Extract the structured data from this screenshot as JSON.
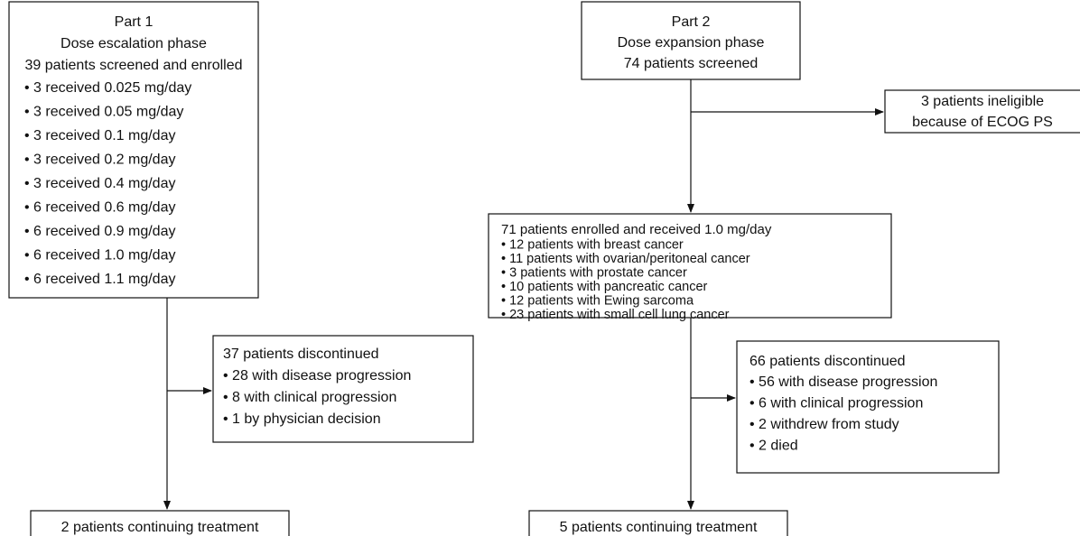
{
  "part1": {
    "title": "Part 1",
    "subtitle": "Dose escalation phase",
    "summary": "39 patients screened and enrolled",
    "bullets": [
      "• 3 received 0.025 mg/day",
      "• 3 received 0.05 mg/day",
      "• 3 received 0.1 mg/day",
      "• 3 received 0.2 mg/day",
      "• 3 received 0.4 mg/day",
      "• 6 received 0.6 mg/day",
      "• 6 received 0.9 mg/day",
      "• 6 received 1.0 mg/day",
      "• 6 received 1.1 mg/day"
    ]
  },
  "part1_discontinued": {
    "summary": "37 patients discontinued",
    "bullets": [
      "• 28 with disease progression",
      "• 8 with clinical progression",
      "• 1 by physician decision"
    ]
  },
  "part1_continuing": "2 patients continuing treatment",
  "part2": {
    "title": "Part 2",
    "subtitle": "Dose expansion phase",
    "summary": "74 patients screened"
  },
  "part2_ineligible": [
    "3 patients ineligible",
    "because of  ECOG PS"
  ],
  "part2_enrolled": {
    "summary": "71 patients enrolled and received 1.0 mg/day",
    "bullets": [
      "• 12 patients with breast cancer",
      "• 11 patients with ovarian/peritoneal cancer",
      "• 3 patients with prostate cancer",
      "• 10 patients with pancreatic cancer",
      "• 12 patients with Ewing sarcoma",
      "• 23 patients with small cell lung cancer"
    ]
  },
  "part2_discontinued": {
    "summary": "66 patients discontinued",
    "bullets": [
      "• 56 with disease progression",
      "• 6 with clinical progression",
      "• 2 withdrew from study",
      "• 2 died"
    ]
  },
  "part2_continuing": "5 patients continuing treatment"
}
